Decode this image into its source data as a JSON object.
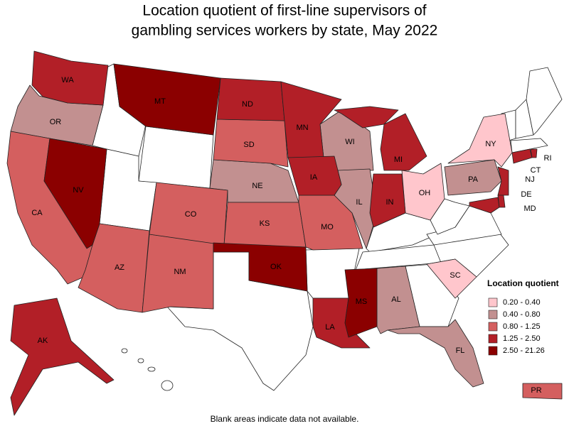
{
  "title_lines": [
    "Location quotient of first-line supervisors of",
    "gambling services workers by state, May 2022"
  ],
  "legend": {
    "title": "Location quotient",
    "items": [
      {
        "label": "0.20 - 0.40",
        "color": "#ffc6cc",
        "states": [
          "OH",
          "NY",
          "SC"
        ]
      },
      {
        "label": "0.40 - 0.80",
        "color": "#c29090",
        "states": [
          "OR",
          "NE",
          "WI",
          "IL",
          "PA",
          "AL",
          "FL"
        ]
      },
      {
        "label": "0.80 - 1.25",
        "color": "#d45f5f",
        "states": [
          "CA",
          "AZ",
          "NM",
          "CO",
          "SD",
          "KS",
          "MO",
          "PR"
        ]
      },
      {
        "label": "1.25 - 2.50",
        "color": "#b21f27",
        "states": [
          "WA",
          "ND",
          "MN",
          "IA",
          "MI",
          "IN",
          "LA",
          "AK",
          "CT",
          "NJ",
          "MD",
          "DE",
          "RI"
        ]
      },
      {
        "label": "2.50 - 21.26",
        "color": "#8b0000",
        "states": [
          "MT",
          "NV",
          "OK",
          "MS"
        ]
      }
    ]
  },
  "note": "Blank areas indicate data not available."
}
